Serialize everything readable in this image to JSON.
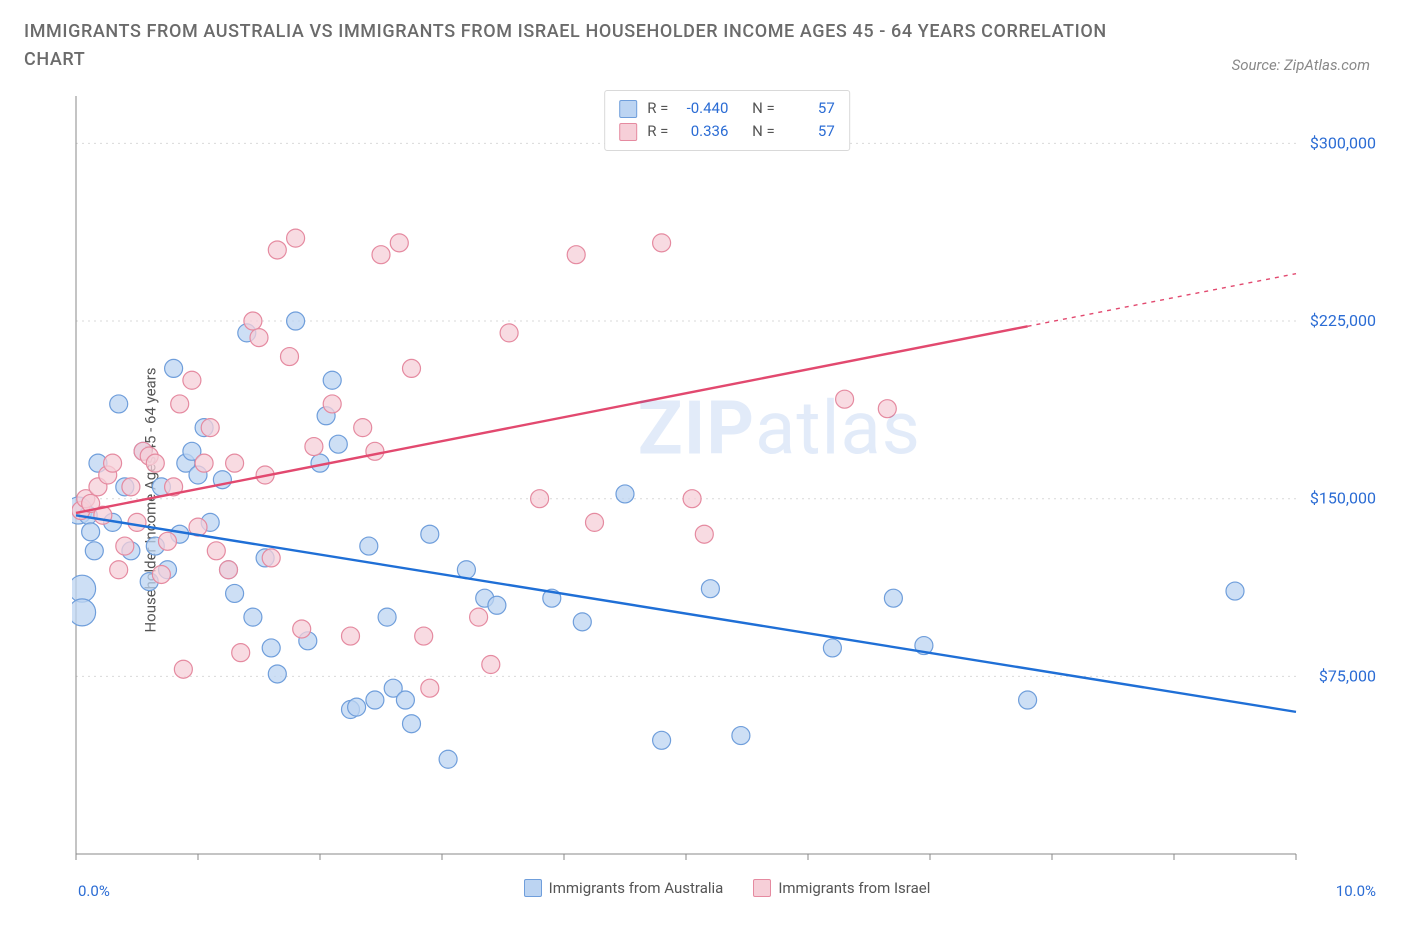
{
  "title": "IMMIGRANTS FROM AUSTRALIA VS IMMIGRANTS FROM ISRAEL HOUSEHOLDER INCOME AGES 45 - 64 YEARS CORRELATION CHART",
  "source": "Source: ZipAtlas.com",
  "watermark": {
    "zip": "ZIP",
    "atlas": "atlas"
  },
  "ylabel": "Householder Income Ages 45 - 64 years",
  "chart": {
    "type": "scatter",
    "background_color": "#ffffff",
    "grid_color": "#d9d9d9",
    "grid_dash": "2,4",
    "axis_color": "#888888",
    "xlim": [
      0,
      10
    ],
    "ylim": [
      0,
      320000
    ],
    "xticks": [
      0,
      1,
      2,
      3,
      4,
      5,
      6,
      7,
      8,
      9,
      10
    ],
    "xticklabels_shown": {
      "0": "0.0%",
      "10": "10.0%"
    },
    "ygrid": [
      75000,
      150000,
      225000,
      300000
    ],
    "yticklabels": [
      "$75,000",
      "$150,000",
      "$225,000",
      "$300,000"
    ],
    "ytick_color": "#2b6cd4",
    "ytick_fontsize": 16,
    "xtick_color": "#2b6cd4",
    "marker_radius": 9,
    "marker_radius_large": 14,
    "marker_stroke_width": 1.2,
    "line_width": 2.4,
    "line_width_thin": 1.4,
    "line_dash": "4,5"
  },
  "series": [
    {
      "key": "australia",
      "label": "Immigrants from Australia",
      "marker_fill": "#bcd4f2",
      "marker_stroke": "#6f9edb",
      "line_color": "#1f6fd6",
      "R": "-0.440",
      "N": "57",
      "trend": {
        "x0": 0,
        "y0": 143000,
        "x1": 10,
        "y1": 60000,
        "dash_from_x": null
      },
      "points": [
        [
          0.02,
          145000,
          1.5
        ],
        [
          0.05,
          112000,
          1.5
        ],
        [
          0.05,
          102000,
          1.5
        ],
        [
          0.1,
          143000
        ],
        [
          0.12,
          136000
        ],
        [
          0.15,
          128000
        ],
        [
          0.18,
          165000
        ],
        [
          0.3,
          140000
        ],
        [
          0.35,
          190000
        ],
        [
          0.4,
          155000
        ],
        [
          0.45,
          128000
        ],
        [
          0.55,
          170000
        ],
        [
          0.6,
          115000
        ],
        [
          0.65,
          130000
        ],
        [
          0.7,
          155000
        ],
        [
          0.75,
          120000
        ],
        [
          0.8,
          205000
        ],
        [
          0.85,
          135000
        ],
        [
          0.9,
          165000
        ],
        [
          0.95,
          170000
        ],
        [
          1.0,
          160000
        ],
        [
          1.05,
          180000
        ],
        [
          1.1,
          140000
        ],
        [
          1.2,
          158000
        ],
        [
          1.25,
          120000
        ],
        [
          1.3,
          110000
        ],
        [
          1.4,
          220000
        ],
        [
          1.45,
          100000
        ],
        [
          1.55,
          125000
        ],
        [
          1.6,
          87000
        ],
        [
          1.65,
          76000
        ],
        [
          1.8,
          225000
        ],
        [
          1.9,
          90000
        ],
        [
          2.0,
          165000
        ],
        [
          2.05,
          185000
        ],
        [
          2.1,
          200000
        ],
        [
          2.15,
          173000
        ],
        [
          2.25,
          61000
        ],
        [
          2.3,
          62000
        ],
        [
          2.4,
          130000
        ],
        [
          2.45,
          65000
        ],
        [
          2.55,
          100000
        ],
        [
          2.6,
          70000
        ],
        [
          2.7,
          65000
        ],
        [
          2.75,
          55000
        ],
        [
          2.9,
          135000
        ],
        [
          3.05,
          40000
        ],
        [
          3.2,
          120000
        ],
        [
          3.35,
          108000
        ],
        [
          3.45,
          105000
        ],
        [
          3.9,
          108000
        ],
        [
          4.15,
          98000
        ],
        [
          4.5,
          152000
        ],
        [
          4.8,
          48000
        ],
        [
          5.2,
          112000
        ],
        [
          5.45,
          50000
        ],
        [
          6.2,
          87000
        ],
        [
          6.7,
          108000
        ],
        [
          6.95,
          88000
        ],
        [
          7.8,
          65000
        ],
        [
          9.5,
          111000
        ]
      ]
    },
    {
      "key": "israel",
      "label": "Immigrants from Israel",
      "marker_fill": "#f6cfd8",
      "marker_stroke": "#e58aa0",
      "line_color": "#e2496f",
      "R": "0.336",
      "N": "57",
      "trend": {
        "x0": 0,
        "y0": 144000,
        "x1": 10,
        "y1": 245000,
        "dash_from_x": 7.8
      },
      "points": [
        [
          0.04,
          145000
        ],
        [
          0.08,
          150000
        ],
        [
          0.12,
          148000
        ],
        [
          0.18,
          155000
        ],
        [
          0.22,
          143000
        ],
        [
          0.26,
          160000
        ],
        [
          0.3,
          165000
        ],
        [
          0.35,
          120000
        ],
        [
          0.4,
          130000
        ],
        [
          0.45,
          155000
        ],
        [
          0.5,
          140000
        ],
        [
          0.55,
          170000
        ],
        [
          0.6,
          168000
        ],
        [
          0.65,
          165000
        ],
        [
          0.7,
          118000
        ],
        [
          0.75,
          132000
        ],
        [
          0.8,
          155000
        ],
        [
          0.85,
          190000
        ],
        [
          0.88,
          78000
        ],
        [
          0.95,
          200000
        ],
        [
          1.0,
          138000
        ],
        [
          1.05,
          165000
        ],
        [
          1.1,
          180000
        ],
        [
          1.15,
          128000
        ],
        [
          1.25,
          120000
        ],
        [
          1.3,
          165000
        ],
        [
          1.35,
          85000
        ],
        [
          1.45,
          225000
        ],
        [
          1.5,
          218000
        ],
        [
          1.55,
          160000
        ],
        [
          1.6,
          125000
        ],
        [
          1.65,
          255000
        ],
        [
          1.75,
          210000
        ],
        [
          1.8,
          260000
        ],
        [
          1.85,
          95000
        ],
        [
          1.95,
          172000
        ],
        [
          2.1,
          190000
        ],
        [
          2.25,
          92000
        ],
        [
          2.35,
          180000
        ],
        [
          2.45,
          170000
        ],
        [
          2.5,
          253000
        ],
        [
          2.65,
          258000
        ],
        [
          2.75,
          205000
        ],
        [
          2.85,
          92000
        ],
        [
          2.9,
          70000
        ],
        [
          3.3,
          100000
        ],
        [
          3.4,
          80000
        ],
        [
          3.55,
          220000
        ],
        [
          3.8,
          150000
        ],
        [
          4.1,
          253000
        ],
        [
          4.25,
          140000
        ],
        [
          4.8,
          258000
        ],
        [
          5.05,
          150000
        ],
        [
          5.15,
          135000
        ],
        [
          6.3,
          192000
        ],
        [
          6.65,
          188000
        ]
      ]
    }
  ],
  "legend_top": {
    "rows": [
      {
        "sw_fill": "#bcd4f2",
        "sw_stroke": "#6f9edb",
        "R_label": "R =",
        "R": "-0.440",
        "N_label": "N =",
        "N": "57"
      },
      {
        "sw_fill": "#f6cfd8",
        "sw_stroke": "#e58aa0",
        "R_label": "R =",
        "R": "0.336",
        "N_label": "N =",
        "N": "57"
      }
    ]
  },
  "legend_bottom": {
    "items": [
      {
        "sw_fill": "#bcd4f2",
        "sw_stroke": "#6f9edb",
        "label": "Immigrants from Australia"
      },
      {
        "sw_fill": "#f6cfd8",
        "sw_stroke": "#e58aa0",
        "label": "Immigrants from Israel"
      }
    ]
  }
}
